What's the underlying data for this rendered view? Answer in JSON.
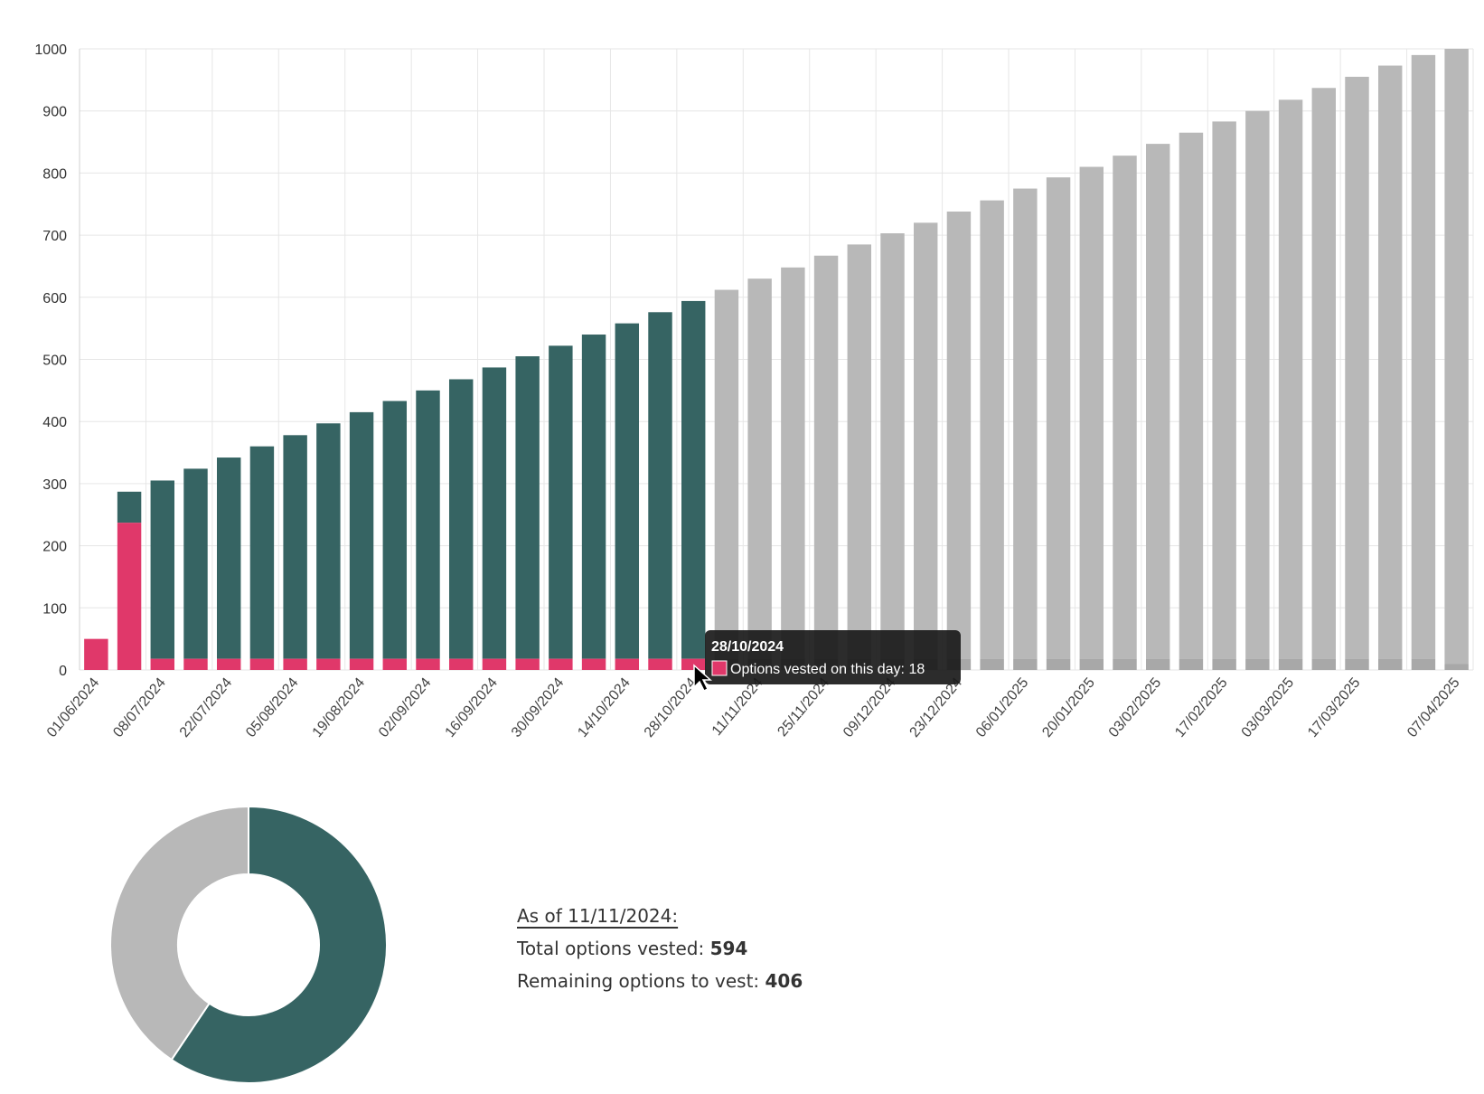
{
  "colors": {
    "vested": "#366463",
    "daily": "#e0386a",
    "unvested": "#b8b8b8",
    "unvested_daily": "#a8a8a8",
    "grid": "#e6e6e6",
    "tooltip_bg": "#1a1a1a"
  },
  "chart_data": [
    {
      "type": "bar",
      "stacked": true,
      "ylim": [
        0,
        1000
      ],
      "yticks": [
        0,
        100,
        200,
        300,
        400,
        500,
        600,
        700,
        800,
        900,
        1000
      ],
      "x_tick_labels": [
        "01/06/2024",
        "08/07/2024",
        "22/07/2024",
        "05/08/2024",
        "19/08/2024",
        "02/09/2024",
        "16/09/2024",
        "30/09/2024",
        "14/10/2024",
        "28/10/2024",
        "11/11/2024",
        "25/11/2024",
        "09/12/2024",
        "23/12/2024",
        "06/01/2025",
        "20/01/2025",
        "03/02/2025",
        "17/02/2025",
        "03/03/2025",
        "17/03/2025",
        "07/04/2025"
      ],
      "grid": true,
      "cumulative_values": [
        50,
        287,
        305,
        324,
        342,
        360,
        378,
        397,
        415,
        433,
        450,
        468,
        487,
        505,
        522,
        540,
        558,
        576,
        594,
        612,
        630,
        648,
        667,
        685,
        703,
        720,
        738,
        756,
        775,
        793,
        810,
        828,
        847,
        865,
        883,
        900,
        918,
        937,
        955,
        973,
        990,
        1000
      ],
      "daily_values": [
        50,
        237,
        18,
        18,
        18,
        18,
        18,
        18,
        18,
        18,
        18,
        18,
        18,
        18,
        18,
        18,
        18,
        18,
        18,
        18,
        18,
        18,
        18,
        18,
        18,
        18,
        18,
        18,
        18,
        18,
        18,
        18,
        18,
        18,
        18,
        18,
        18,
        18,
        18,
        18,
        18,
        10
      ],
      "vested_bar_count": 19,
      "tooltip": {
        "date": "28/10/2024",
        "label": "Options vested on this day: 18"
      }
    },
    {
      "type": "pie",
      "donut": true,
      "slices": [
        {
          "label": "Total options vested",
          "value": 594
        },
        {
          "label": "Remaining options to vest",
          "value": 406
        }
      ]
    }
  ],
  "summary": {
    "as_of": "As of 11/11/2024:",
    "vested_label": "Total options vested: ",
    "vested_value": "594",
    "remaining_label": "Remaining options to vest: ",
    "remaining_value": "406"
  }
}
